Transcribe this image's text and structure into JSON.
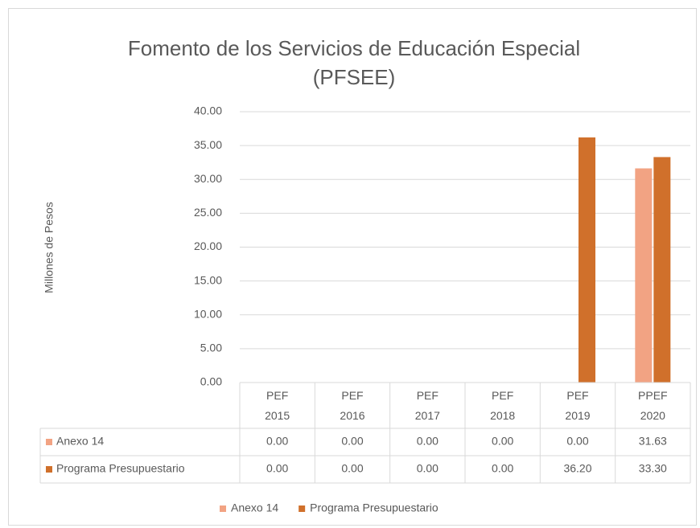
{
  "chart_data": {
    "type": "bar",
    "title": "Fomento de los Servicios de Educación Especial (PFSEE)",
    "y_label": "Millones de Pesos",
    "categories": [
      "PEF 2015",
      "PEF 2016",
      "PEF 2017",
      "PEF 2018",
      "PEF 2019",
      "PPEF 2020"
    ],
    "series": [
      {
        "name": "Anexo 14",
        "color": "#f2a383",
        "values": [
          0,
          0,
          0,
          0,
          0,
          31.63
        ],
        "value_labels": [
          "0.00",
          "0.00",
          "0.00",
          "0.00",
          "0.00",
          "31.63"
        ]
      },
      {
        "name": "Programa Presupuestario",
        "color": "#d0702b",
        "values": [
          0,
          0,
          0,
          0,
          36.2,
          33.3
        ],
        "value_labels": [
          "0.00",
          "0.00",
          "0.00",
          "0.00",
          "36.20",
          "33.30"
        ]
      }
    ],
    "ylim": [
      0,
      40
    ],
    "yticks": [
      {
        "value": 0,
        "label": "0.00"
      },
      {
        "value": 5,
        "label": "5.00"
      },
      {
        "value": 10,
        "label": "10.00"
      },
      {
        "value": 15,
        "label": "15.00"
      },
      {
        "value": 20,
        "label": "20.00"
      },
      {
        "value": 25,
        "label": "25.00"
      },
      {
        "value": 30,
        "label": "30.00"
      },
      {
        "value": 35,
        "label": "35.00"
      },
      {
        "value": 40,
        "label": "40.00"
      }
    ],
    "grid": true,
    "legend": "bottom"
  }
}
